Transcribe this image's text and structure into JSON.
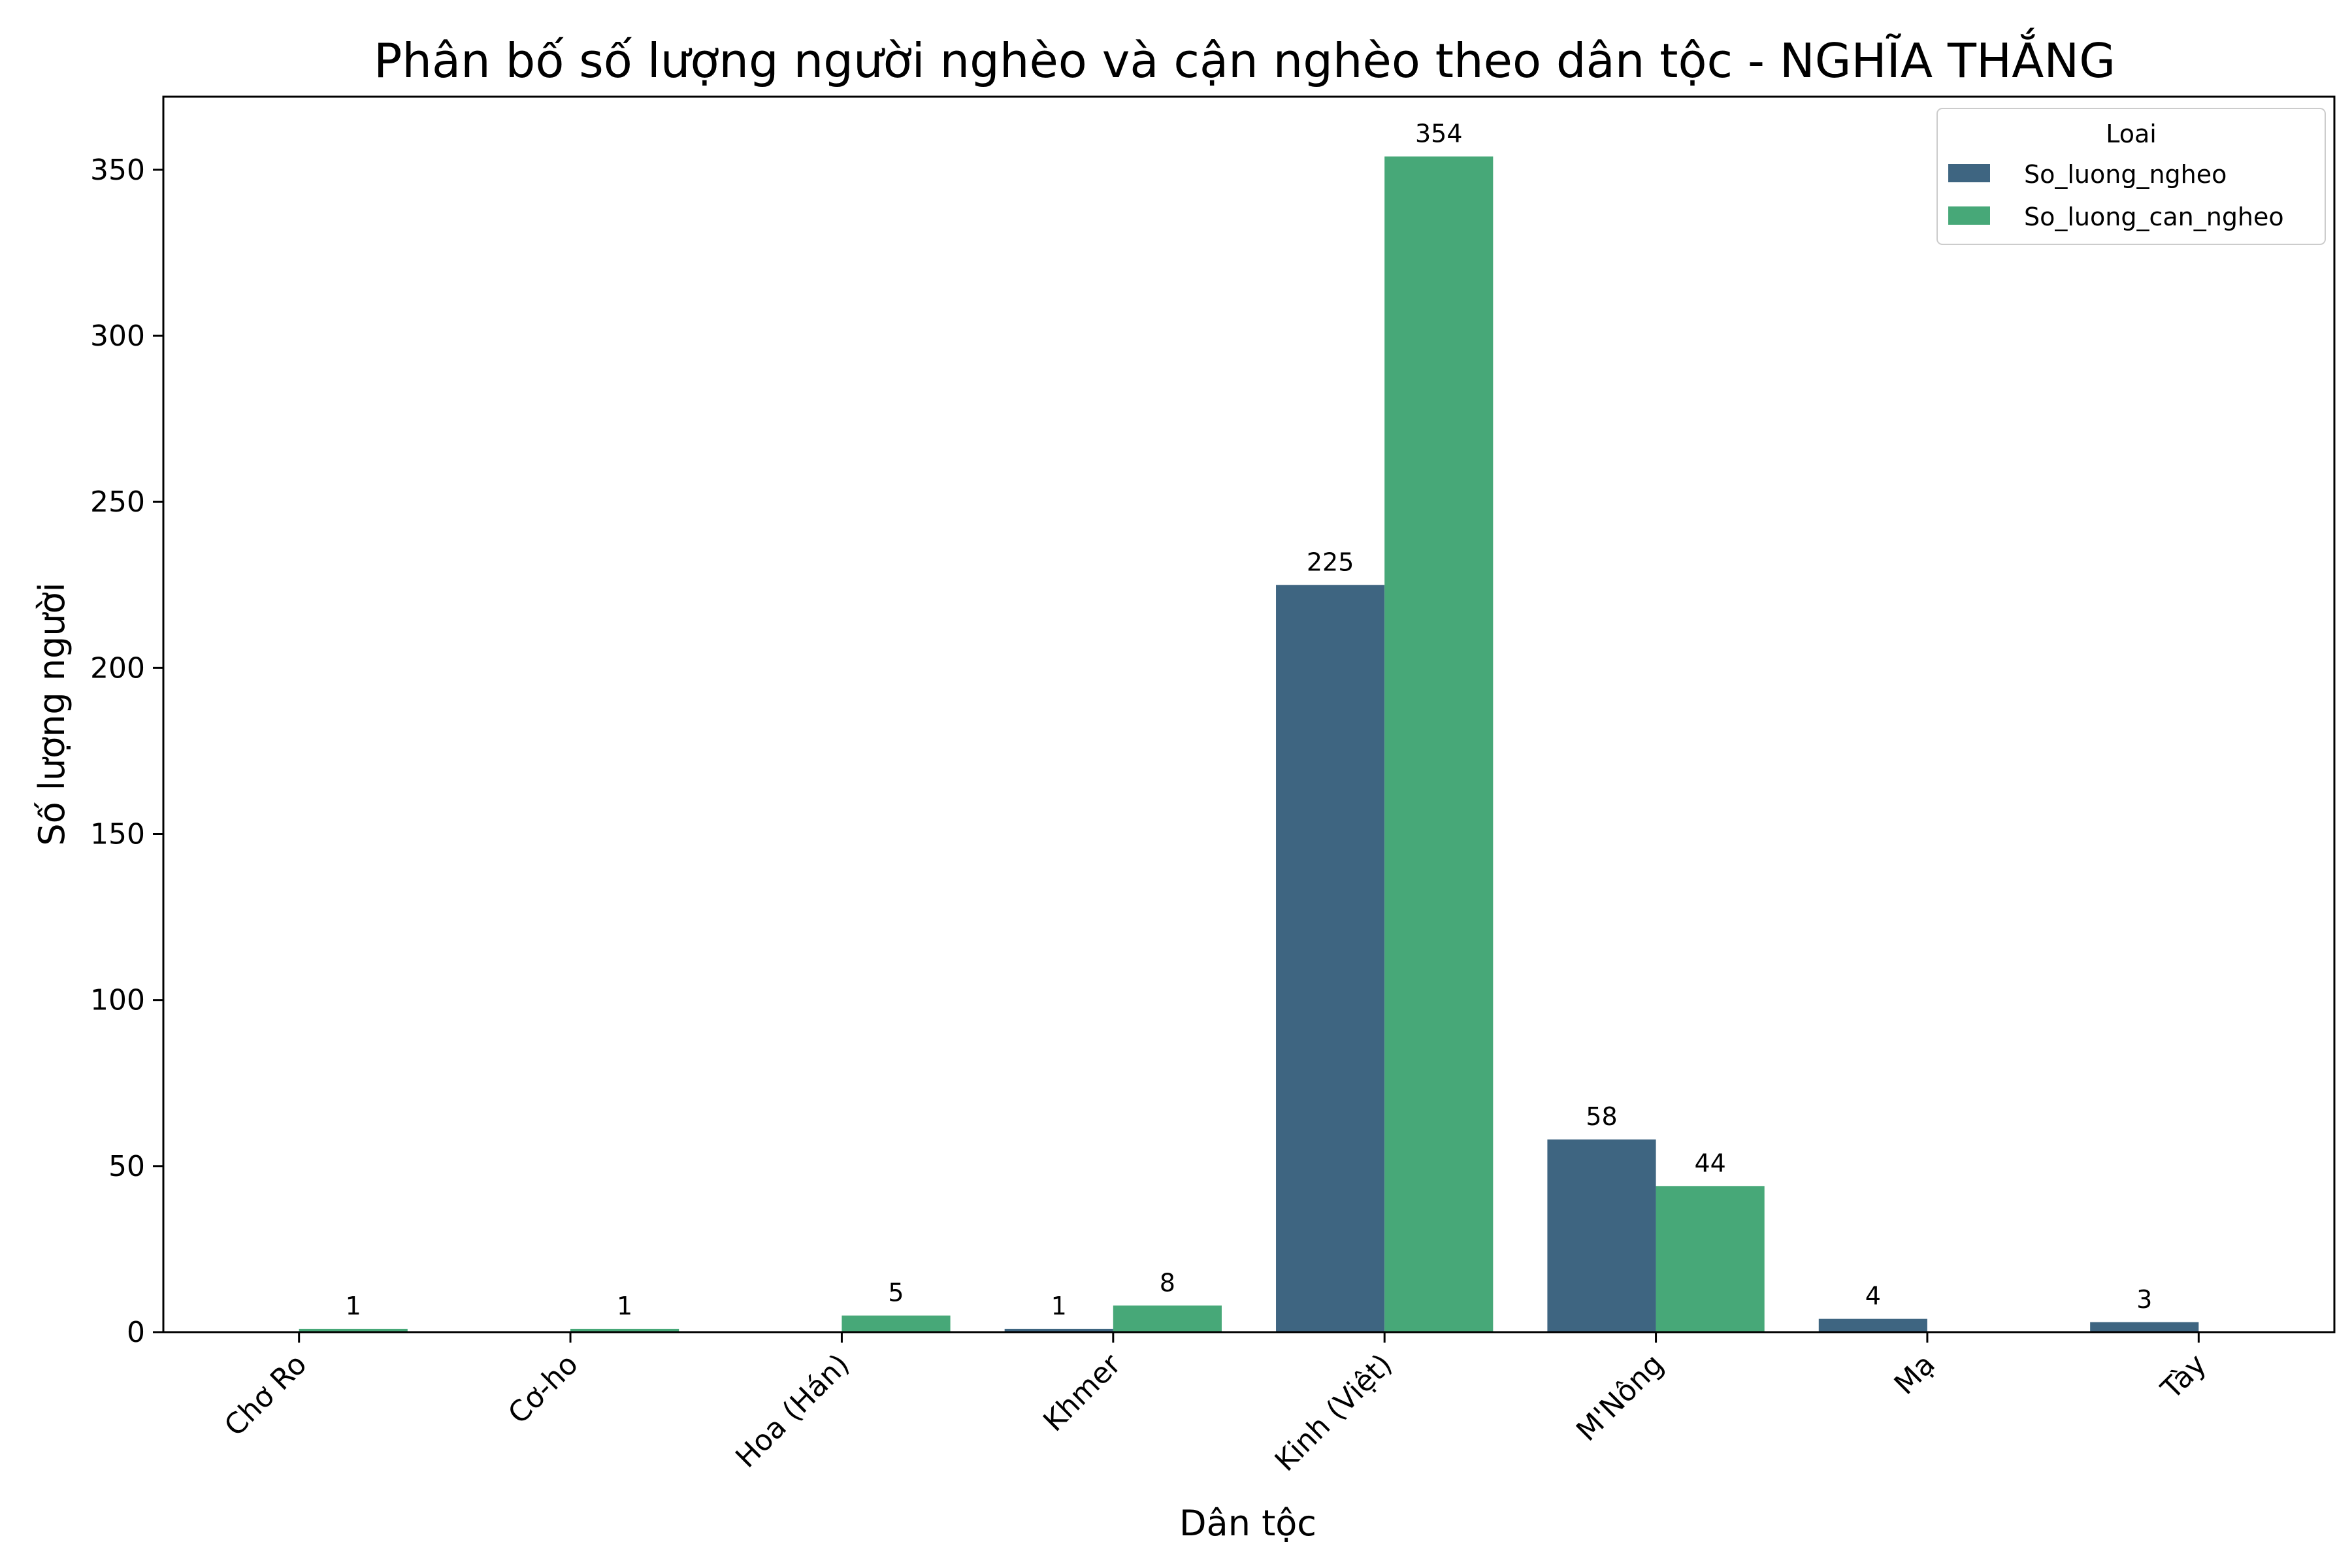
{
  "chart_data": {
    "type": "bar",
    "title": "Phân bố số lượng người nghèo và cận nghèo theo dân tộc - NGHĨA THẮNG",
    "xlabel": "Dân tộc",
    "ylabel": "Số lượng người",
    "categories": [
      "Chơ Ro",
      "Cơ-ho",
      "Hoa (Hán)",
      "Khmer",
      "Kinh (Việt)",
      "M'Nông",
      "Mạ",
      "Tày"
    ],
    "series": [
      {
        "name": "So_luong_ngheo",
        "color": "#3e6581",
        "values": [
          0,
          0,
          0,
          1,
          225,
          58,
          4,
          3
        ]
      },
      {
        "name": "So_luong_can_ngheo",
        "color": "#47a878",
        "values": [
          1,
          1,
          5,
          8,
          354,
          44,
          0,
          0
        ]
      }
    ],
    "data_labels": [
      [
        null,
        null,
        null,
        "1",
        "225",
        "58",
        "4",
        "3"
      ],
      [
        "1",
        "1",
        "5",
        "8",
        "354",
        "44",
        null,
        null
      ]
    ],
    "ylim": [
      0,
      372
    ],
    "yticks": [
      0,
      50,
      100,
      150,
      200,
      250,
      300,
      350
    ],
    "ytick_labels": [
      "0",
      "50",
      "100",
      "150",
      "200",
      "250",
      "300",
      "350"
    ],
    "grid": false,
    "legend": {
      "title": "Loai",
      "placement": "top-right"
    }
  }
}
